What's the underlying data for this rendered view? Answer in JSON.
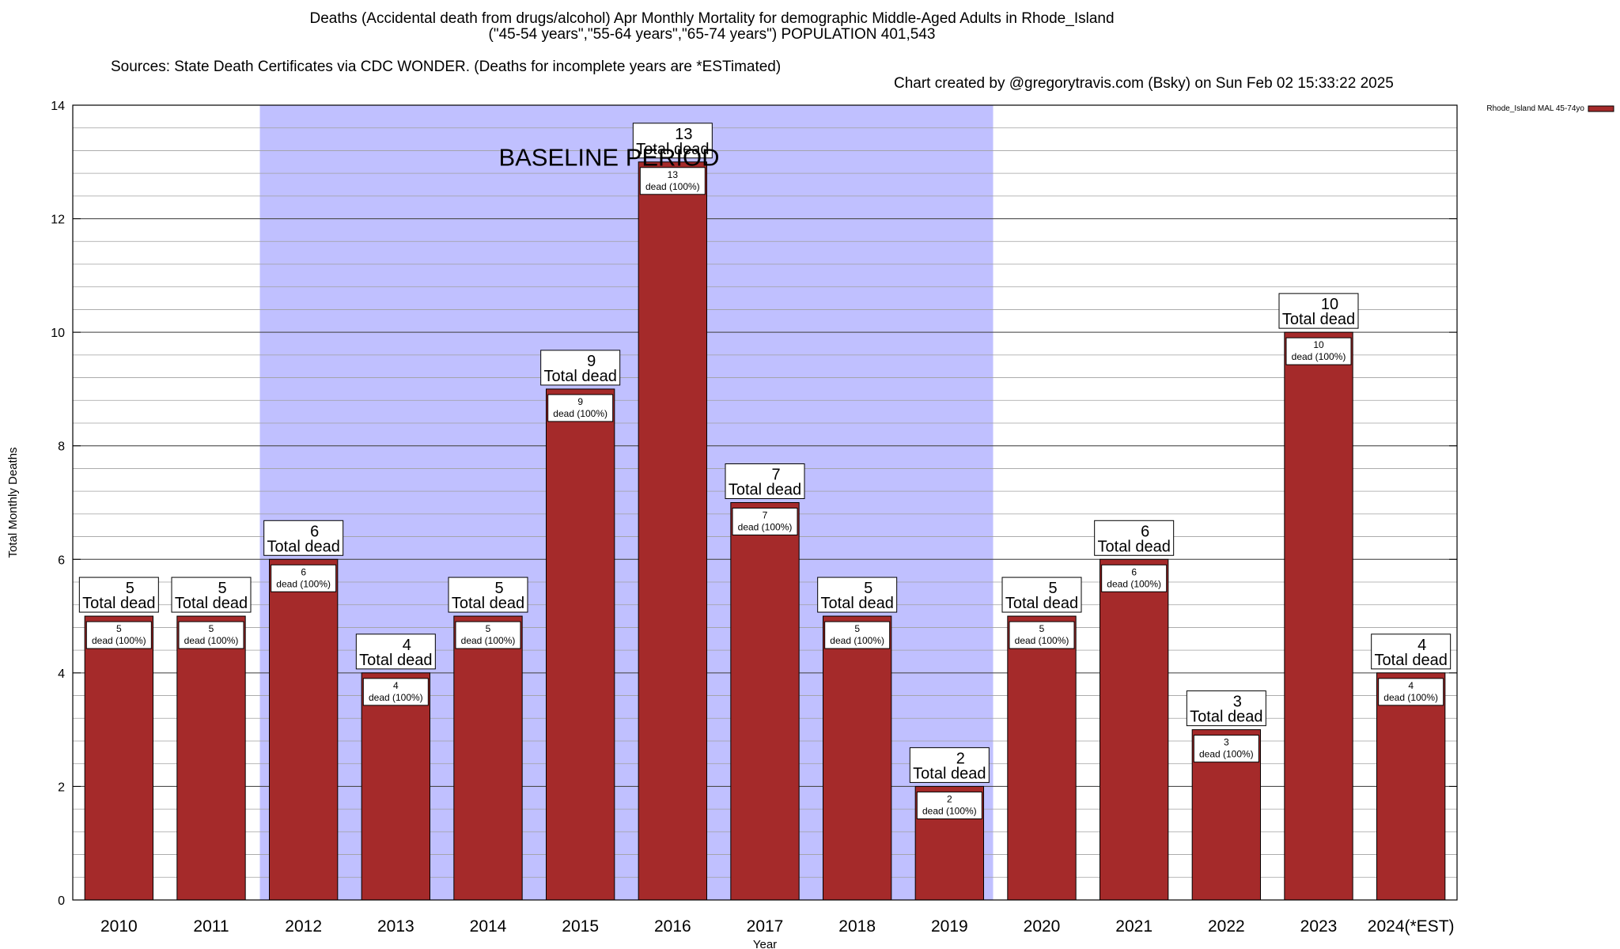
{
  "header": {
    "title": "Deaths (Accidental death from drugs/alcohol) Apr Monthly Mortality for demographic Middle-Aged Adults in Rhode_Island",
    "subtitle": "(\"45-54 years\",\"55-64 years\",\"65-74 years\") POPULATION 401,543",
    "sources": "Sources: State Death Certificates via CDC WONDER. (Deaths for incomplete years are *ESTimated)",
    "credit": "Chart created by @gregorytravis.com (Bsky) on Sun Feb 02 15:33:22 2025"
  },
  "chart_data": {
    "type": "bar",
    "categories": [
      "2010",
      "2011",
      "2012",
      "2013",
      "2014",
      "2015",
      "2016",
      "2017",
      "2018",
      "2019",
      "2020",
      "2021",
      "2022",
      "2023",
      "2024(*EST)"
    ],
    "series": [
      {
        "name": "Rhode_Island MAL 45-74yo",
        "values": [
          5,
          5,
          6,
          4,
          5,
          9,
          13,
          7,
          5,
          2,
          5,
          6,
          3,
          10,
          4
        ],
        "color": "#a52a2a"
      }
    ],
    "xlabel": "Year",
    "ylabel": "Total Monthly Deaths",
    "ylim": [
      0,
      14
    ],
    "yticks": [
      0,
      2,
      4,
      6,
      8,
      10,
      12,
      14
    ],
    "grid": true,
    "legend_position": "top-right",
    "baseline": {
      "label": "BASELINE PERIOD",
      "start": "2012",
      "end": "2019",
      "color": "#c0c0ff"
    },
    "total_label_suffix": "Total dead",
    "inner_label_suffix": "dead (100%)"
  }
}
